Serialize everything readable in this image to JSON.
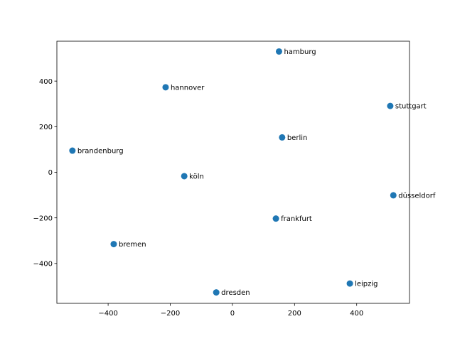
{
  "chart_data": {
    "type": "scatter",
    "title": "",
    "xlabel": "",
    "ylabel": "",
    "xlim": [
      -565,
      570
    ],
    "ylim": [
      -575,
      575
    ],
    "xticks": [
      -400,
      -200,
      0,
      200,
      400
    ],
    "yticks": [
      -400,
      -200,
      0,
      200,
      400
    ],
    "xtick_labels": [
      "−400",
      "−200",
      "0",
      "200",
      "400"
    ],
    "ytick_labels": [
      "−400",
      "−200",
      "0",
      "200",
      "400"
    ],
    "grid": false,
    "marker_color": "#1f77b4",
    "points": [
      {
        "label": "hamburg",
        "x": 150,
        "y": 530
      },
      {
        "label": "hannover",
        "x": -215,
        "y": 373
      },
      {
        "label": "stuttgart",
        "x": 508,
        "y": 291
      },
      {
        "label": "berlin",
        "x": 160,
        "y": 153
      },
      {
        "label": "brandenburg",
        "x": -515,
        "y": 95
      },
      {
        "label": "köln",
        "x": -155,
        "y": -17
      },
      {
        "label": "düsseldorf",
        "x": 518,
        "y": -101
      },
      {
        "label": "frankfurt",
        "x": 140,
        "y": -203
      },
      {
        "label": "bremen",
        "x": -382,
        "y": -315
      },
      {
        "label": "leipzig",
        "x": 378,
        "y": -488
      },
      {
        "label": "dresden",
        "x": -52,
        "y": -527
      }
    ]
  }
}
